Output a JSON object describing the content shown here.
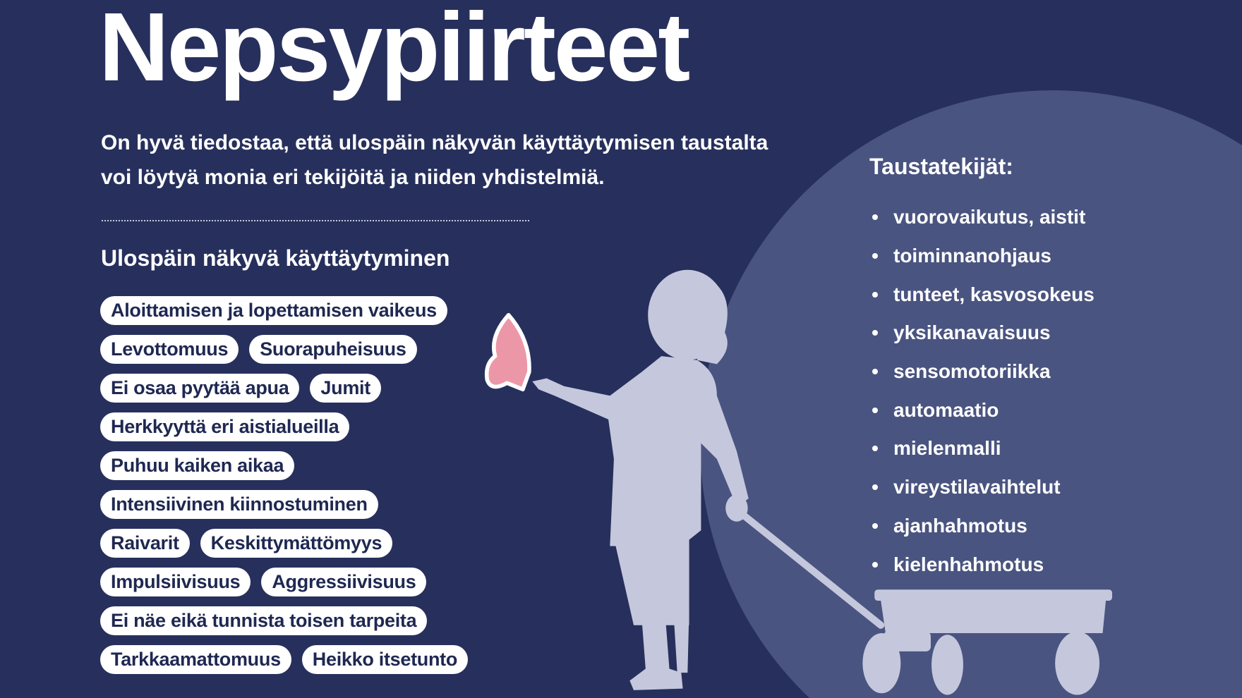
{
  "title": "Nepsypiirteet",
  "intro": "On hyvä tiedostaa, että ulospäin näkyvän käyttäytymisen taustalta voi löytyä monia eri tekijöitä ja niiden yhdistelmiä.",
  "behavior": {
    "heading": "Ulospäin näkyvä käyttäytyminen",
    "rows": [
      [
        "Aloittamisen ja lopettamisen vaikeus"
      ],
      [
        "Levottomuus",
        "Suorapuheisuus"
      ],
      [
        "Ei osaa pyytää apua",
        "Jumit"
      ],
      [
        "Herkkyyttä eri aistialueilla"
      ],
      [
        "Puhuu kaiken aikaa"
      ],
      [
        "Intensiivinen kiinnostuminen"
      ],
      [
        "Raivarit",
        "Keskittymättömyys"
      ],
      [
        "Impulsiivisuus",
        "Aggressiivisuus"
      ],
      [
        "Ei näe eikä tunnista toisen tarpeita"
      ],
      [
        "Tarkkaamattomuus",
        "Heikko itsetunto"
      ]
    ]
  },
  "factors": {
    "heading": "Taustatekijät:",
    "items": [
      "vuorovaikutus, aistit",
      "toiminnanohjaus",
      "tunteet, kasvosokeus",
      "yksikanavaisuus",
      "sensomotoriikka",
      "automaatio",
      "mielenmalli",
      "vireystilavaihtelut",
      "ajanhahmotus",
      "kielenhahmotus"
    ]
  },
  "colors": {
    "background": "#27305c",
    "circle": "#4a5480",
    "silhouette": "#c5c8dd",
    "butterfly": "#ec97a8",
    "pill_text": "#1f2852"
  },
  "illustration": {
    "icons": [
      "child-silhouette-icon",
      "butterfly-icon",
      "wagon-icon"
    ]
  }
}
